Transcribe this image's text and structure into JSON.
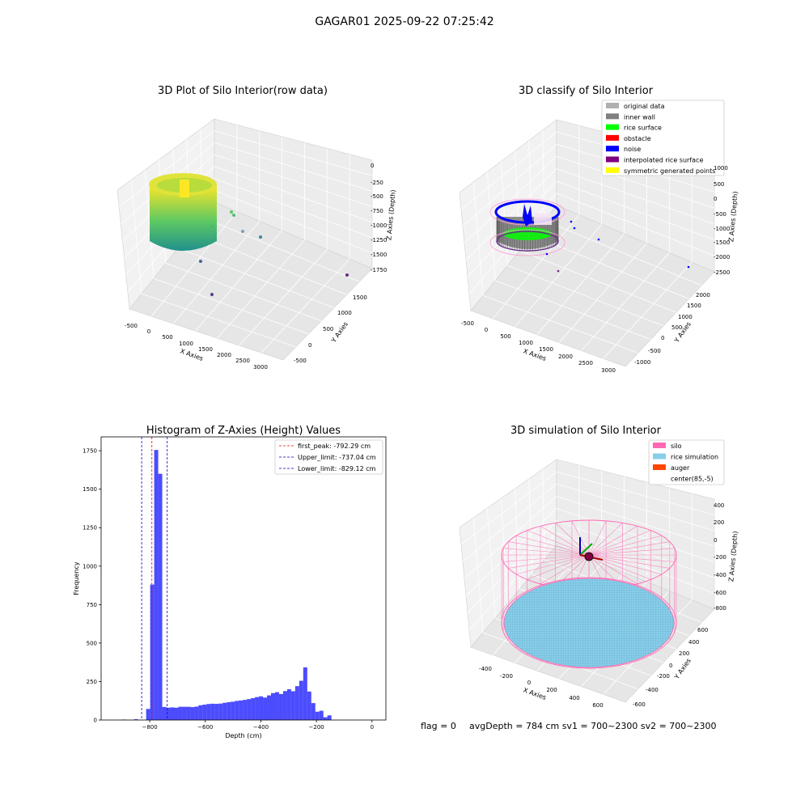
{
  "figure": {
    "suptitle": "GAGAR01 2025-09-22 07:25:42",
    "footer": {
      "flag": "flag = 0",
      "stats": "avgDepth = 784 cm  sv1 = 700~2300  sv2 = 700~2300"
    }
  },
  "chart_data": [
    {
      "id": "raw3d",
      "type": "scatter",
      "title": "3D Plot of Silo Interior(row data)",
      "xlabel": "X Axies",
      "ylabel": "Y Axies",
      "zlabel": "Z Axies (Depth)",
      "x_ticks": [
        "-500",
        "0",
        "500",
        "1000",
        "1500",
        "2000",
        "2500",
        "3000"
      ],
      "y_ticks": [
        "-500",
        "0",
        "500",
        "1000",
        "1500"
      ],
      "z_ticks": [
        "0",
        "-250",
        "-500",
        "-750",
        "-1000",
        "-1250",
        "-1500",
        "-1750"
      ],
      "colormap": [
        "#440154",
        "#3b528b",
        "#21918c",
        "#5ec962",
        "#fde725"
      ]
    },
    {
      "id": "classify3d",
      "type": "scatter",
      "title": "3D classify of Silo Interior",
      "xlabel": "X Axies",
      "ylabel": "Y Axies",
      "zlabel": "Z Axies (Depth)",
      "x_ticks": [
        "-500",
        "0",
        "500",
        "1000",
        "1500",
        "2000",
        "2500",
        "3000"
      ],
      "y_ticks": [
        "-1000",
        "-500",
        "0",
        "500",
        "1000",
        "1500",
        "2000"
      ],
      "z_ticks": [
        "1000",
        "500",
        "0",
        "-500",
        "-1000",
        "-1500",
        "-2000",
        "-2500"
      ],
      "legend": [
        {
          "label": "original data",
          "color": "#b0b0b0"
        },
        {
          "label": "inner wall",
          "color": "#808080"
        },
        {
          "label": "rice surface",
          "color": "#00ff00"
        },
        {
          "label": "obstacle",
          "color": "#ff0000"
        },
        {
          "label": "noise",
          "color": "#0000ff"
        },
        {
          "label": "interpolated rice surface",
          "color": "#800080"
        },
        {
          "label": "symmetric generated points",
          "color": "#ffff00"
        }
      ]
    },
    {
      "id": "histogram",
      "type": "bar",
      "title": "Histogram of Z-Axies (Height) Values",
      "xlabel": "Depth (cm)",
      "ylabel": "Frequency",
      "xlim": [
        -975,
        50
      ],
      "ylim": [
        0,
        1840
      ],
      "x_ticks": [
        -800,
        -600,
        -400,
        -200,
        0
      ],
      "y_ticks": [
        0,
        250,
        500,
        750,
        1000,
        1250,
        1500,
        1750
      ],
      "bar_color": "#0000ff",
      "bin_start": -900,
      "bin_width": 14.5,
      "values": [
        3,
        0,
        0,
        5,
        0,
        0,
        72,
        880,
        1755,
        1600,
        85,
        80,
        82,
        80,
        86,
        86,
        86,
        84,
        87,
        96,
        100,
        104,
        106,
        105,
        107,
        112,
        116,
        119,
        124,
        127,
        131,
        136,
        142,
        149,
        154,
        146,
        160,
        175,
        181,
        169,
        188,
        200,
        187,
        220,
        255,
        342,
        185,
        110,
        54,
        60,
        18,
        30
      ],
      "vlines": [
        {
          "label": "first_peak: -792.29 cm",
          "x": -792.29,
          "color": "#ff0000"
        },
        {
          "label": "Upper_limit: -737.04 cm",
          "x": -737.04,
          "color": "#0000cc"
        },
        {
          "label": "Lower_limit: -829.12 cm",
          "x": -829.12,
          "color": "#0000cc"
        }
      ]
    },
    {
      "id": "sim3d",
      "type": "scatter",
      "title": "3D simulation of Silo Interior",
      "xlabel": "X Axies",
      "ylabel": "Y Axies",
      "zlabel": "Z Axies (Depth)",
      "x_ticks": [
        "-400",
        "-200",
        "0",
        "200",
        "400",
        "600"
      ],
      "y_ticks": [
        "-600",
        "-400",
        "-200",
        "0",
        "200",
        "400",
        "600"
      ],
      "z_ticks": [
        "400",
        "200",
        "0",
        "-200",
        "-400",
        "-600",
        "-800"
      ],
      "legend": [
        {
          "label": "silo",
          "color": "#ff69b4"
        },
        {
          "label": "rice simulation",
          "color": "#87ceeb"
        },
        {
          "label": "auger",
          "color": "#ff4500"
        },
        {
          "label": "center(85,-5)",
          "color": "none"
        }
      ]
    }
  ]
}
